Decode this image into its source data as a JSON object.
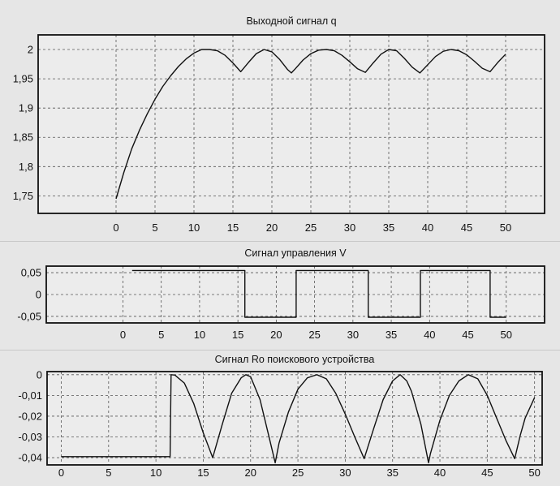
{
  "chart_data": [
    {
      "type": "line",
      "title": "Выходной сигнал q",
      "xlim": [
        -10,
        55
      ],
      "ylim": [
        1.72,
        2.025
      ],
      "x_ticks": [
        "0",
        "5",
        "10",
        "15",
        "20",
        "25",
        "30",
        "35",
        "40",
        "45",
        "50"
      ],
      "y_ticks": [
        "1,75",
        "1,8",
        "1,85",
        "1,9",
        "1,95",
        "2"
      ],
      "grid": true,
      "series": [
        {
          "x": [
            0,
            1,
            2,
            3,
            4,
            5,
            6,
            7,
            8,
            9,
            10,
            11,
            12,
            13,
            14,
            15,
            16,
            17,
            18,
            19,
            20,
            21,
            22,
            22.5,
            23,
            24,
            25,
            26,
            27,
            28,
            29,
            30,
            31,
            32,
            33,
            34,
            35,
            36,
            37,
            38,
            39,
            40,
            41,
            42,
            43,
            44,
            45,
            46,
            47,
            48,
            49,
            50
          ],
          "y": [
            1.745,
            1.79,
            1.83,
            1.862,
            1.89,
            1.915,
            1.937,
            1.955,
            1.971,
            1.984,
            1.994,
            2.0,
            2.0,
            1.998,
            1.99,
            1.977,
            1.962,
            1.978,
            1.993,
            2.0,
            1.996,
            1.983,
            1.966,
            1.96,
            1.967,
            1.982,
            1.993,
            1.999,
            2.0,
            1.998,
            1.99,
            1.979,
            1.967,
            1.961,
            1.977,
            1.992,
            2.0,
            1.998,
            1.985,
            1.97,
            1.96,
            1.974,
            1.988,
            1.997,
            2.0,
            1.998,
            1.991,
            1.98,
            1.968,
            1.962,
            1.978,
            1.992
          ]
        }
      ]
    },
    {
      "type": "line",
      "title": "Сигнал управления V",
      "xlim": [
        -10,
        55
      ],
      "ylim": [
        -0.065,
        0.065
      ],
      "x_ticks": [
        "0",
        "5",
        "10",
        "15",
        "20",
        "25",
        "30",
        "35",
        "40",
        "45",
        "50"
      ],
      "y_ticks": [
        "-0,05",
        "0",
        "0,05"
      ],
      "grid": true,
      "series": [
        {
          "x": [
            1.2,
            15.9,
            15.9,
            22.6,
            22.6,
            32.0,
            32.0,
            38.8,
            38.8,
            47.9,
            47.9,
            50
          ],
          "y": [
            0.055,
            0.055,
            -0.052,
            -0.052,
            0.055,
            0.055,
            -0.052,
            -0.052,
            0.055,
            0.055,
            -0.052,
            -0.052
          ]
        }
      ]
    },
    {
      "type": "line",
      "title": "Сигнал Ro поискового устройства",
      "xlim": [
        -1.5,
        50.8
      ],
      "ylim": [
        -0.0435,
        0.0015
      ],
      "x_ticks": [
        "0",
        "5",
        "10",
        "15",
        "20",
        "25",
        "30",
        "35",
        "40",
        "45",
        "50"
      ],
      "y_ticks": [
        "-0,04",
        "-0,03",
        "-0,02",
        "-0,01",
        "0"
      ],
      "grid": true,
      "series": [
        {
          "x": [
            0,
            11.5,
            11.6,
            12,
            13,
            14,
            15,
            16,
            17,
            18,
            19,
            19.5,
            20,
            21,
            22,
            22.6,
            23,
            24,
            25,
            26,
            27,
            28,
            29,
            30,
            31,
            32,
            33,
            34,
            35,
            35.8,
            36.5,
            37,
            38,
            38.8,
            39,
            40,
            41,
            42,
            43,
            44,
            45,
            46,
            47,
            47.9,
            48.5,
            49,
            50
          ],
          "y": [
            -0.0395,
            -0.0395,
            0.0,
            -0.0002,
            -0.004,
            -0.014,
            -0.028,
            -0.04,
            -0.024,
            -0.009,
            -0.0015,
            0.0,
            -0.001,
            -0.012,
            -0.031,
            -0.0425,
            -0.033,
            -0.018,
            -0.007,
            -0.0015,
            0.0,
            -0.002,
            -0.009,
            -0.019,
            -0.03,
            -0.0405,
            -0.026,
            -0.012,
            -0.003,
            0.0,
            -0.003,
            -0.008,
            -0.024,
            -0.0425,
            -0.038,
            -0.022,
            -0.01,
            -0.003,
            0.0,
            -0.002,
            -0.01,
            -0.021,
            -0.032,
            -0.0405,
            -0.029,
            -0.021,
            -0.011
          ]
        }
      ]
    }
  ]
}
